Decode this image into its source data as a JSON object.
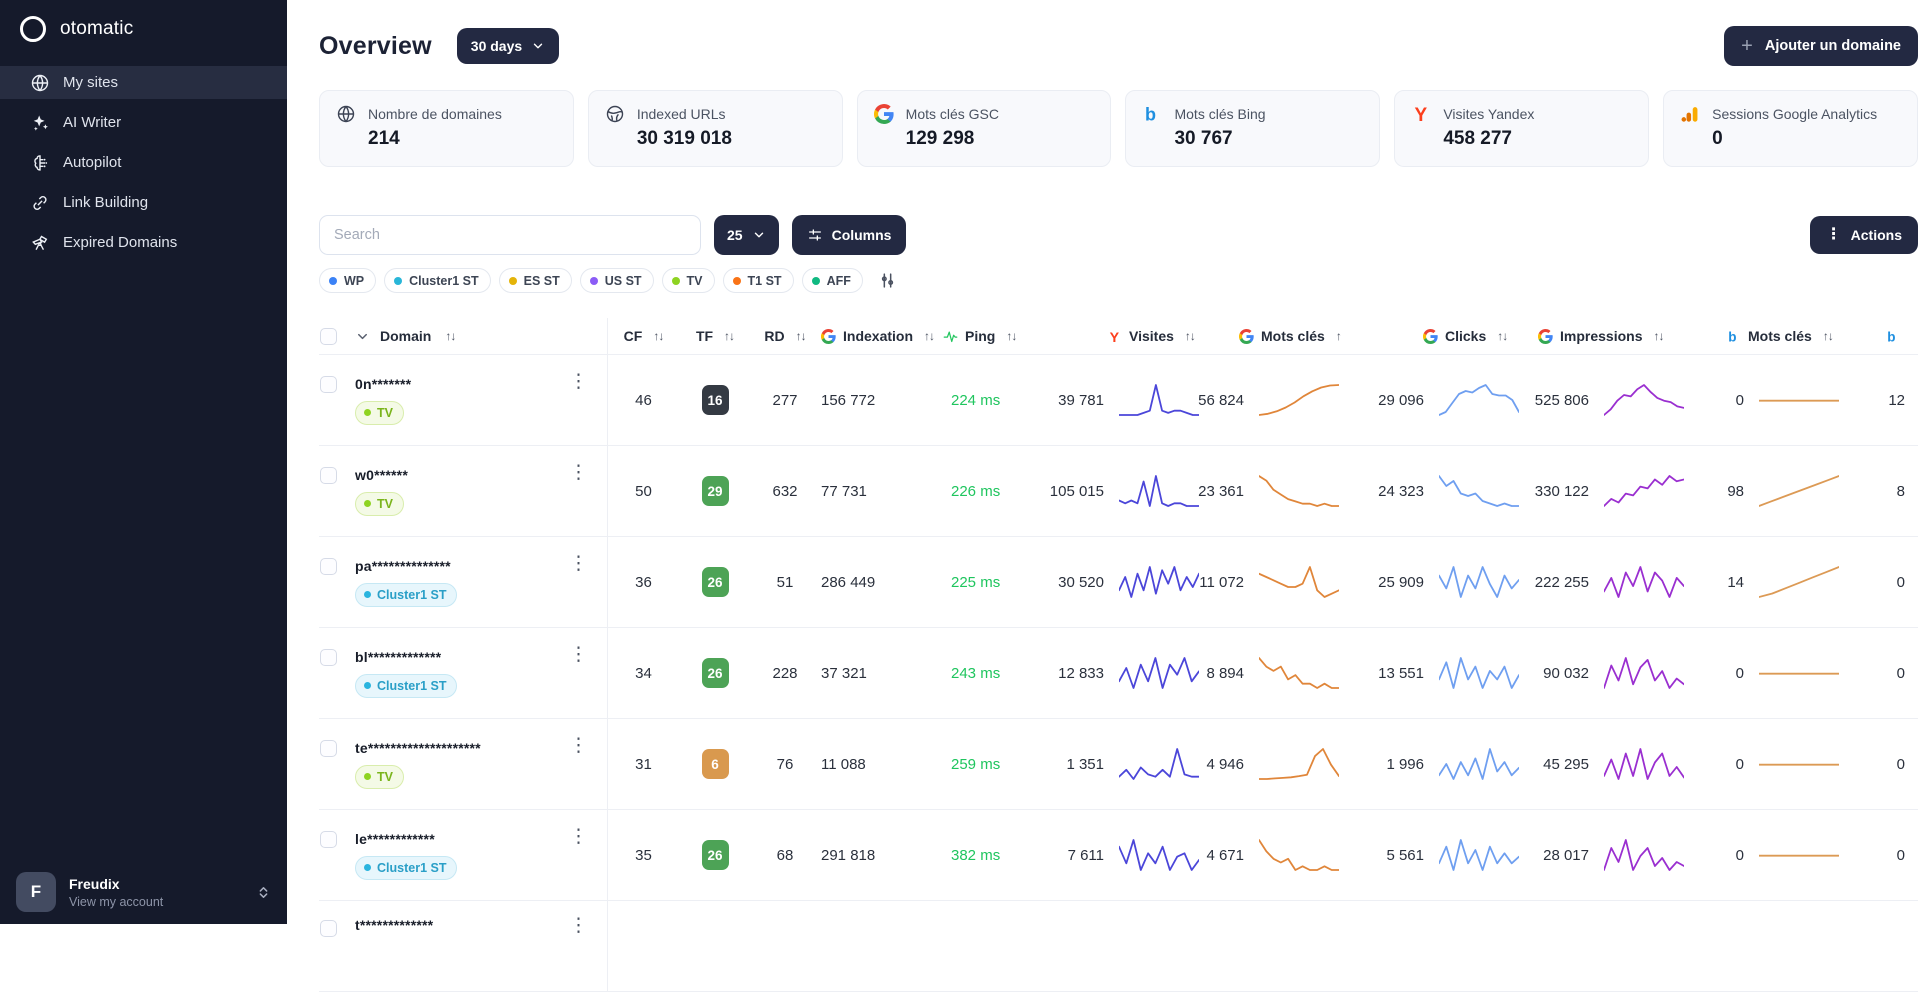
{
  "sidebar": {
    "logo_text": "otomatic",
    "items": [
      {
        "label": "My sites",
        "icon": "globe",
        "active": true
      },
      {
        "label": "AI Writer",
        "icon": "sparkles",
        "active": false
      },
      {
        "label": "Autopilot",
        "icon": "autopilot",
        "active": false
      },
      {
        "label": "Link Building",
        "icon": "link",
        "active": false
      },
      {
        "label": "Expired Domains",
        "icon": "telescope",
        "active": false
      }
    ],
    "account": {
      "initial": "F",
      "name": "Freudix",
      "subtitle": "View my account"
    }
  },
  "header": {
    "title": "Overview",
    "period_label": "30 days",
    "add_domain_label": "Ajouter un domaine"
  },
  "stats_cards": [
    {
      "icon": "globe",
      "label": "Nombre de domaines",
      "value": "214"
    },
    {
      "icon": "globe2",
      "label": "Indexed URLs",
      "value": "30 319 018"
    },
    {
      "icon": "google",
      "label": "Mots clés GSC",
      "value": "129 298"
    },
    {
      "icon": "bing",
      "label": "Mots clés Bing",
      "value": "30 767"
    },
    {
      "icon": "yandex",
      "label": "Visites Yandex",
      "value": "458 277"
    },
    {
      "icon": "analytics",
      "label": "Sessions Google Analytics",
      "value": "0"
    }
  ],
  "toolbar": {
    "search_placeholder": "Search",
    "page_size": "25",
    "columns_label": "Columns",
    "actions_label": "Actions"
  },
  "filter_tags": [
    {
      "label": "WP",
      "color": "#3b82f6"
    },
    {
      "label": "Cluster1 ST",
      "color": "#29b6d8"
    },
    {
      "label": "ES ST",
      "color": "#e4b409"
    },
    {
      "label": "US ST",
      "color": "#8b5cf6"
    },
    {
      "label": "TV",
      "color": "#8ed321"
    },
    {
      "label": "T1 ST",
      "color": "#f97316"
    },
    {
      "label": "AFF",
      "color": "#10b981"
    }
  ],
  "table": {
    "columns": [
      {
        "key": "domain",
        "label": "Domain",
        "sort": "both"
      },
      {
        "key": "cf",
        "label": "CF",
        "sort": "both"
      },
      {
        "key": "tf",
        "label": "TF",
        "sort": "both"
      },
      {
        "key": "rd",
        "label": "RD",
        "sort": "both"
      },
      {
        "key": "indexation",
        "label": "Indexation",
        "icon": "google",
        "sort": "both"
      },
      {
        "key": "ping",
        "label": "Ping",
        "icon": "pulse",
        "sort": "both"
      },
      {
        "key": "visites",
        "label": "Visites",
        "icon": "yandex",
        "sort": "both"
      },
      {
        "key": "gsc_keywords",
        "label": "Mots clés",
        "icon": "google",
        "sort": "asc"
      },
      {
        "key": "clicks",
        "label": "Clicks",
        "icon": "google",
        "sort": "both"
      },
      {
        "key": "impressions",
        "label": "Impressions",
        "icon": "google",
        "sort": "both"
      },
      {
        "key": "bing_keywords",
        "label": "Mots clés",
        "icon": "bing",
        "sort": "both"
      },
      {
        "key": "bing_extra",
        "label": "",
        "icon": "bing",
        "sort": null
      }
    ],
    "spark_colors": {
      "visites": "#4b46d9",
      "gsc": "#e0863a",
      "clicks": "#6f9ff0",
      "impressions": "#9a2fd0",
      "bing": "#dc9a55"
    },
    "rows": [
      {
        "domain": "0n*******",
        "tag": "TV",
        "tag_type": "tv",
        "cf": "46",
        "tf": "16",
        "tf_color": "dark",
        "rd": "277",
        "indexation": "156 772",
        "ping": "224 ms",
        "visites": "39 781",
        "gsc_keywords": "56 824",
        "clicks": "29 096",
        "impressions": "525 806",
        "bing_keywords": "0",
        "bing_extra": "12",
        "sparks": {
          "visites": [
            3,
            3,
            3,
            3,
            4,
            5,
            17,
            5,
            4,
            5,
            5,
            4,
            3,
            3
          ],
          "gsc": [
            1,
            1.5,
            2.5,
            4,
            6,
            8.5,
            10.5,
            12,
            12.8,
            13
          ],
          "clicks": [
            1,
            2,
            5,
            8,
            9,
            8.5,
            10,
            11,
            8,
            7.5,
            7.5,
            6,
            2
          ],
          "impressions": [
            2,
            4,
            7,
            9,
            8.5,
            11,
            12.5,
            10,
            8,
            7,
            6.5,
            5,
            4.5
          ],
          "bing": [
            1,
            1,
            1,
            1,
            1,
            1,
            1,
            1
          ]
        }
      },
      {
        "domain": "w0******",
        "tag": "TV",
        "tag_type": "tv",
        "cf": "50",
        "tf": "29",
        "tf_color": "green",
        "rd": "632",
        "indexation": "77 731",
        "ping": "226 ms",
        "visites": "105 015",
        "gsc_keywords": "23 361",
        "clicks": "24 323",
        "impressions": "330 122",
        "bing_keywords": "98",
        "bing_extra": "8",
        "sparks": {
          "visites": [
            6,
            5,
            6,
            5,
            13,
            4,
            15,
            5,
            4,
            5,
            5,
            4,
            4,
            4
          ],
          "gsc": [
            13,
            12,
            10,
            9,
            8,
            7.5,
            7,
            7,
            6.5,
            7,
            6.5,
            6.5
          ],
          "clicks": [
            11,
            9,
            10,
            7.5,
            7,
            7.5,
            6,
            5.5,
            5,
            5.5,
            5,
            5
          ],
          "impressions": [
            4,
            6,
            5,
            7.5,
            7,
            9.5,
            9,
            11.5,
            10,
            12.5,
            11,
            11.5
          ],
          "bing": [
            1,
            2.5,
            4,
            5.5,
            7,
            8.5,
            10,
            11.5
          ]
        }
      },
      {
        "domain": "pa**************",
        "tag": "Cluster1 ST",
        "tag_type": "cluster",
        "cf": "36",
        "tf": "26",
        "tf_color": "green",
        "rd": "51",
        "indexation": "286 449",
        "ping": "225 ms",
        "visites": "30 520",
        "gsc_keywords": "11 072",
        "clicks": "25 909",
        "impressions": "222 255",
        "bing_keywords": "14",
        "bing_extra": "0",
        "sparks": {
          "visites": [
            5,
            7,
            4,
            7.5,
            5,
            8.5,
            4.5,
            8,
            6,
            8.5,
            5,
            7,
            5.5,
            7.5
          ],
          "gsc": [
            7.5,
            7,
            6.5,
            6,
            5.5,
            5.5,
            6,
            8.5,
            5,
            4,
            4.5,
            5
          ],
          "clicks": [
            8.5,
            7,
            9.5,
            6,
            8.5,
            7,
            9.5,
            7.5,
            6,
            8.5,
            7,
            8
          ],
          "impressions": [
            6,
            8.5,
            5,
            9.5,
            7,
            10.5,
            6,
            9.5,
            8,
            5,
            8.5,
            7
          ],
          "bing": [
            1,
            2,
            3.5,
            5,
            6.5,
            8,
            9.5
          ]
        }
      },
      {
        "domain": "bl*************",
        "tag": "Cluster1 ST",
        "tag_type": "cluster",
        "cf": "34",
        "tf": "26",
        "tf_color": "green",
        "rd": "228",
        "indexation": "37 321",
        "ping": "243 ms",
        "visites": "12 833",
        "gsc_keywords": "8 894",
        "clicks": "13 551",
        "impressions": "90 032",
        "bing_keywords": "0",
        "bing_extra": "0",
        "sparks": {
          "visites": [
            6,
            8,
            5,
            8.5,
            6,
            9.5,
            5,
            8.5,
            7,
            9.5,
            6,
            7.5
          ],
          "gsc": [
            9,
            8,
            7.5,
            8,
            6.5,
            7,
            6,
            6,
            5.5,
            6,
            5.5,
            5.5
          ],
          "clicks": [
            7,
            9,
            6,
            9.5,
            7,
            8.5,
            6,
            8,
            7,
            8.5,
            6,
            7.5
          ],
          "impressions": [
            5,
            11,
            7,
            13,
            6,
            10.5,
            12.5,
            7,
            9.5,
            5,
            7.5,
            6
          ],
          "bing": [
            1,
            1,
            1,
            1,
            1,
            1
          ]
        }
      },
      {
        "domain": "te********************",
        "tag": "TV",
        "tag_type": "tv",
        "cf": "31",
        "tf": "6",
        "tf_color": "orange",
        "rd": "76",
        "indexation": "11 088",
        "ping": "259 ms",
        "visites": "1 351",
        "gsc_keywords": "4 946",
        "clicks": "1 996",
        "impressions": "45 295",
        "bing_keywords": "0",
        "bing_extra": "0",
        "sparks": {
          "visites": [
            3.5,
            5,
            3,
            5.5,
            4,
            3.5,
            5,
            3.5,
            9.5,
            4,
            3.5,
            3.5
          ],
          "gsc": [
            2,
            2,
            2.2,
            2.4,
            2.6,
            3,
            3.5,
            10,
            12.5,
            7,
            3
          ],
          "clicks": [
            4,
            7,
            3,
            7.5,
            4,
            8.5,
            3,
            11,
            5,
            7.5,
            4,
            6
          ],
          "impressions": [
            4,
            9.5,
            3,
            11.5,
            4,
            13,
            3,
            8.5,
            11.5,
            4,
            7,
            3.5
          ],
          "bing": [
            1,
            1,
            1,
            1,
            1,
            1
          ]
        }
      },
      {
        "domain": "le************",
        "tag": "Cluster1 ST",
        "tag_type": "cluster",
        "cf": "35",
        "tf": "26",
        "tf_color": "green",
        "rd": "68",
        "indexation": "291 818",
        "ping": "382 ms",
        "visites": "7 611",
        "gsc_keywords": "4 671",
        "clicks": "5 561",
        "impressions": "28 017",
        "bing_keywords": "0",
        "bing_extra": "0",
        "sparks": {
          "visites": [
            8.5,
            6,
            9.5,
            5,
            7.5,
            6,
            8.5,
            5,
            7,
            7.5,
            5,
            6.5
          ],
          "gsc": [
            9.5,
            8,
            7,
            6.5,
            7,
            5.5,
            6,
            5.5,
            5.5,
            6,
            5.5,
            5.5
          ],
          "clicks": [
            6,
            8.5,
            5,
            9.5,
            6,
            8,
            5,
            8.5,
            6,
            7.5,
            6,
            7
          ],
          "impressions": [
            5,
            10.5,
            7,
            12.5,
            5,
            8.5,
            10.5,
            6,
            8,
            5,
            7,
            6
          ],
          "bing": [
            1,
            1,
            1,
            1,
            1,
            1
          ]
        }
      },
      {
        "domain": "t*************",
        "partial": true
      }
    ]
  }
}
